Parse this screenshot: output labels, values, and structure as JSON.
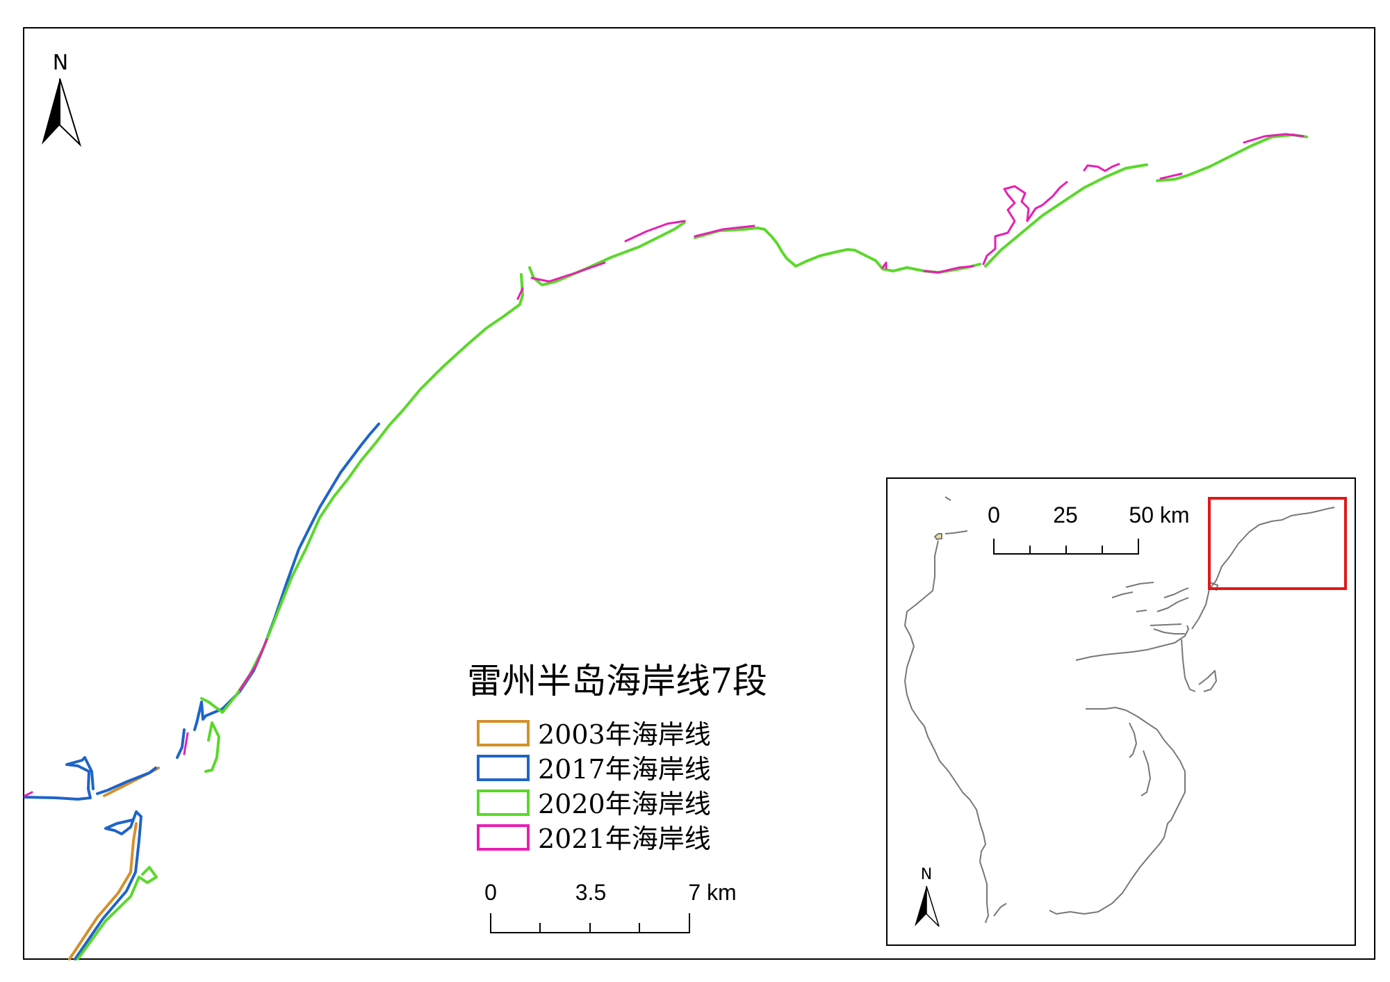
{
  "map": {
    "title": "雷州半岛海岸线7段",
    "north_label": "N",
    "legend": [
      {
        "label": "2003年海岸线",
        "color": "#D4902A"
      },
      {
        "label": "2017年海岸线",
        "color": "#1E64C8"
      },
      {
        "label": "2020年海岸线",
        "color": "#5AD82A"
      },
      {
        "label": "2021年海岸线",
        "color": "#E81EB4"
      }
    ],
    "scale": {
      "ticks": [
        "0",
        "3.5",
        "7 km"
      ]
    }
  },
  "inset": {
    "north_label": "N",
    "scale": {
      "ticks": [
        "0",
        "25",
        "50 km"
      ]
    },
    "highlight_color": "#E01818"
  }
}
